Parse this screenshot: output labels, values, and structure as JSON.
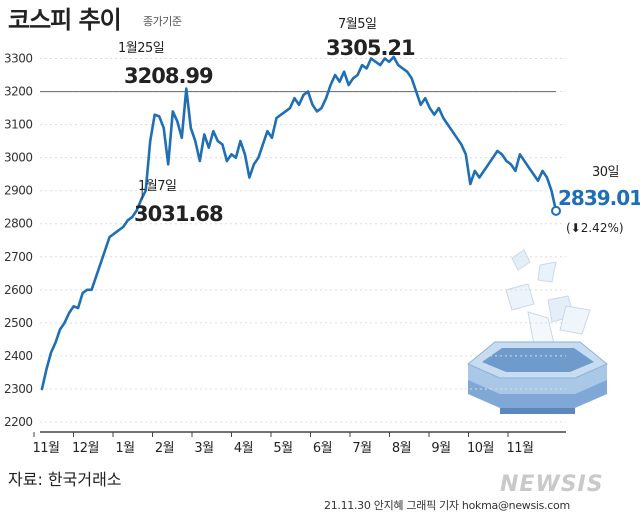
{
  "chart_data": {
    "type": "line",
    "title": "코스피 추이",
    "subtitle": "종가기준",
    "ylim": [
      2200,
      3350
    ],
    "y_ticks": [
      2200,
      2300,
      2400,
      2500,
      2600,
      2700,
      2800,
      2900,
      3000,
      3100,
      3200,
      3300
    ],
    "x_labels": [
      "11월",
      "12월",
      "1월",
      "2월",
      "3월",
      "4월",
      "5월",
      "6월",
      "7월",
      "8월",
      "9월",
      "10월",
      "11월"
    ],
    "reference_line": 3200,
    "series": [
      {
        "values": [
          2300,
          2360,
          2410,
          2440,
          2480,
          2500,
          2530,
          2550,
          2545,
          2590,
          2600,
          2600,
          2640,
          2680,
          2720,
          2760,
          2770,
          2780,
          2790,
          2810,
          2820,
          2840,
          2873,
          2900,
          3050,
          3130,
          3125,
          3090,
          2980,
          3140,
          3110,
          3060,
          3209,
          3090,
          3050,
          2990,
          3070,
          3030,
          3080,
          3050,
          3040,
          2990,
          3010,
          3000,
          3050,
          3010,
          2940,
          2980,
          3000,
          3040,
          3080,
          3060,
          3120,
          3130,
          3140,
          3150,
          3180,
          3160,
          3190,
          3200,
          3160,
          3140,
          3150,
          3180,
          3220,
          3250,
          3230,
          3260,
          3220,
          3240,
          3250,
          3280,
          3270,
          3300,
          3290,
          3280,
          3300,
          3290,
          3305,
          3280,
          3270,
          3260,
          3240,
          3200,
          3160,
          3180,
          3150,
          3130,
          3150,
          3120,
          3100,
          3080,
          3060,
          3040,
          3010,
          2920,
          2960,
          2940,
          2960,
          2980,
          3000,
          3020,
          3010,
          2990,
          2980,
          2960,
          3010,
          2990,
          2970,
          2950,
          2930,
          2960,
          2940,
          2900,
          2839.01
        ]
      }
    ],
    "annotations": [
      {
        "date": "1월7일",
        "value": "3031.68"
      },
      {
        "date": "1월25일",
        "value": "3208.99"
      },
      {
        "date": "7월5일",
        "value": "3305.21"
      }
    ],
    "last_point": {
      "date": "30일",
      "value": "2839.01",
      "change": "(⬇2.42%)"
    },
    "colors": {
      "line": "#1f6fb5",
      "axis": "#444444",
      "grid": "#dddddd",
      "value_text": "#1f6fb5"
    }
  },
  "footer": {
    "source": "자료: 한국거래소",
    "credit": "21.11.30 안지혜 그래픽 기자 hokma@newsis.com",
    "logo": "NEWSIS"
  }
}
